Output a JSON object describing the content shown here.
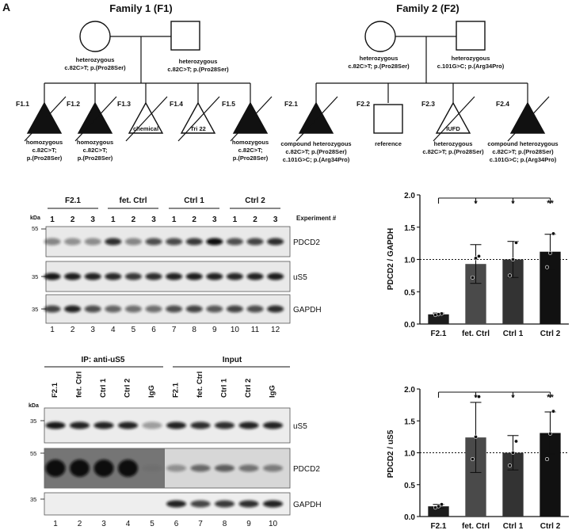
{
  "panel_letter": "A",
  "family1": {
    "title": "Family 1 (F1)",
    "mother": {
      "label_1": "heterozygous",
      "label_2": "c.82C>T; p.(Pro28Ser)"
    },
    "father": {
      "label_1": "heterozygous",
      "label_2": "c.82C>T; p.(Pro28Ser)"
    },
    "children": [
      {
        "id": "F1.1",
        "affected": true,
        "note_1": "homozygous",
        "note_2": "c.82C>T;",
        "note_3": "p.(Pro28Ser)",
        "inner": ""
      },
      {
        "id": "F1.2",
        "affected": true,
        "note_1": "homozygous",
        "note_2": "c.82C>T;",
        "note_3": "p.(Pro28Ser)",
        "inner": ""
      },
      {
        "id": "F1.3",
        "affected": false,
        "note_1": "",
        "note_2": "",
        "note_3": "",
        "inner": "chemical"
      },
      {
        "id": "F1.4",
        "affected": false,
        "note_1": "",
        "note_2": "",
        "note_3": "",
        "inner": "Tri 22"
      },
      {
        "id": "F1.5",
        "affected": true,
        "note_1": "homozygous",
        "note_2": "c.82C>T;",
        "note_3": "p.(Pro28Ser)",
        "inner": ""
      }
    ]
  },
  "family2": {
    "title": "Family 2 (F2)",
    "mother": {
      "label_1": "heterozygous",
      "label_2": "c.82C>T; p.(Pro28Ser)"
    },
    "father": {
      "label_1": "heterozygous",
      "label_2": "c.101G>C; p.(Arg34Pro)"
    },
    "children": [
      {
        "id": "F2.1",
        "shape": "triangle",
        "affected": true,
        "note_1": "compound heterozygous",
        "note_2": "c.82C>T; p.(Pro28Ser)",
        "note_3": "c.101G>C; p.(Arg34Pro)",
        "inner": ""
      },
      {
        "id": "F2.2",
        "shape": "square",
        "affected": false,
        "note_1": "reference",
        "note_2": "",
        "note_3": "",
        "inner": ""
      },
      {
        "id": "F2.3",
        "shape": "triangle",
        "affected": false,
        "note_1": "heterozygous",
        "note_2": "c.82C>T; p.(Pro28Ser)",
        "note_3": "",
        "inner": "IUFD"
      },
      {
        "id": "F2.4",
        "shape": "triangle",
        "affected": true,
        "note_1": "compound heterozygous",
        "note_2": "c.82C>T; p.(Pro28Ser)",
        "note_3": "c.101G>C; p.(Arg34Pro)",
        "inner": ""
      }
    ]
  },
  "blot1": {
    "groups": [
      "F2.1",
      "fet. Ctrl",
      "Ctrl 1",
      "Ctrl 2"
    ],
    "experiment_numbers": [
      "1",
      "2",
      "3"
    ],
    "experiment_label": "Experiment #",
    "kda_label": "kDa",
    "rows": [
      {
        "protein": "PDCD2",
        "marker": "55"
      },
      {
        "protein": "uS5",
        "marker": "35"
      },
      {
        "protein": "GAPDH",
        "marker": "35"
      }
    ],
    "lanes": [
      "1",
      "2",
      "3",
      "4",
      "5",
      "6",
      "7",
      "8",
      "9",
      "10",
      "11",
      "12"
    ]
  },
  "blot2": {
    "ip_label": "IP: anti-uS5",
    "input_label": "Input",
    "kda_label": "kDa",
    "lane_labels": [
      "F2.1",
      "fet. Ctrl",
      "Ctrl 1",
      "Ctrl 2",
      "IgG",
      "F2.1",
      "fet. Ctrl",
      "Ctrl 1",
      "Ctrl 2",
      "IgG"
    ],
    "rows": [
      {
        "protein": "uS5",
        "marker": "35"
      },
      {
        "protein": "PDCD2",
        "marker": "55"
      },
      {
        "protein": "GAPDH",
        "marker": "35"
      }
    ],
    "lanes": [
      "1",
      "2",
      "3",
      "4",
      "5",
      "6",
      "7",
      "8",
      "9",
      "10"
    ]
  },
  "chart_data": [
    {
      "type": "bar",
      "ylabel": "PDCD2 / GAPDH",
      "categories": [
        "F2.1",
        "fet. Ctrl",
        "Ctrl 1",
        "Ctrl 2"
      ],
      "values": [
        0.15,
        0.93,
        1.0,
        1.12
      ],
      "errors": [
        0.02,
        0.3,
        0.28,
        0.27
      ],
      "points": [
        [
          0.14,
          0.15,
          0.16
        ],
        [
          0.72,
          1.02,
          1.05
        ],
        [
          0.75,
          1.0,
          1.26
        ],
        [
          0.88,
          1.1,
          1.4
        ]
      ],
      "significance": [
        "",
        "*",
        "*",
        "**"
      ],
      "ylim": [
        0,
        2.0
      ],
      "yticks": [
        "0.0",
        "0.5",
        "1.0",
        "1.5",
        "2.0"
      ],
      "reference_line": 1.0,
      "colors": [
        "#1c1c1c",
        "#4a4a4a",
        "#333333",
        "#111111"
      ]
    },
    {
      "type": "bar",
      "ylabel": "PDCD2 / uS5",
      "categories": [
        "F2.1",
        "fet. Ctrl",
        "Ctrl 1",
        "Ctrl 2"
      ],
      "values": [
        0.16,
        1.24,
        1.0,
        1.31
      ],
      "errors": [
        0.03,
        0.55,
        0.27,
        0.33
      ],
      "points": [
        [
          0.14,
          0.16,
          0.19
        ],
        [
          0.9,
          1.25,
          1.88
        ],
        [
          0.8,
          1.0,
          1.18
        ],
        [
          0.9,
          1.3,
          1.65
        ]
      ],
      "significance": [
        "",
        "*",
        "*",
        "**"
      ],
      "ylim": [
        0,
        2.0
      ],
      "yticks": [
        "0.0",
        "0.5",
        "1.0",
        "1.5",
        "2.0"
      ],
      "reference_line": 1.0,
      "colors": [
        "#1c1c1c",
        "#4a4a4a",
        "#333333",
        "#111111"
      ]
    }
  ]
}
